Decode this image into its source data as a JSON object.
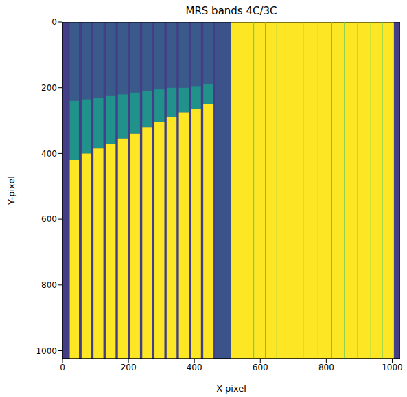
{
  "chart_data": {
    "type": "image",
    "title": "MRS bands 4C/3C",
    "x_label": "X-pixel",
    "y_label": "Y-pixel",
    "xlim": [
      0,
      1024
    ],
    "ylim": [
      0,
      1024
    ],
    "xticks": [
      0,
      200,
      400,
      600,
      800,
      1000
    ],
    "yticks": [
      0,
      200,
      400,
      600,
      800,
      1000
    ],
    "regions": [
      {
        "x": [
          0,
          1024
        ],
        "y": [
          0,
          1024
        ],
        "color": "#433e85"
      },
      {
        "x": [
          462,
          510
        ],
        "y": [
          0,
          1024
        ],
        "color": "#3b528b"
      },
      {
        "x": [
          510,
          1005
        ],
        "y": [
          0,
          1024
        ],
        "color": "#fde725"
      }
    ],
    "colors": [
      "#3b5a8c",
      "#21918c",
      "#fde725"
    ],
    "slices": [
      {
        "x": [
          22,
          50
        ],
        "teal_from": 240,
        "yellow_from": 420
      },
      {
        "x": [
          58,
          87
        ],
        "teal_from": 235,
        "yellow_from": 400
      },
      {
        "x": [
          94,
          124
        ],
        "teal_from": 230,
        "yellow_from": 385
      },
      {
        "x": [
          131,
          161
        ],
        "teal_from": 225,
        "yellow_from": 370
      },
      {
        "x": [
          168,
          198
        ],
        "teal_from": 220,
        "yellow_from": 355
      },
      {
        "x": [
          205,
          235
        ],
        "teal_from": 215,
        "yellow_from": 340
      },
      {
        "x": [
          242,
          272
        ],
        "teal_from": 210,
        "yellow_from": 320
      },
      {
        "x": [
          279,
          309
        ],
        "teal_from": 205,
        "yellow_from": 305
      },
      {
        "x": [
          316,
          346
        ],
        "teal_from": 200,
        "yellow_from": 290
      },
      {
        "x": [
          353,
          383
        ],
        "teal_from": 200,
        "yellow_from": 275
      },
      {
        "x": [
          390,
          420
        ],
        "teal_from": 195,
        "yellow_from": 265
      },
      {
        "x": [
          427,
          458
        ],
        "teal_from": 190,
        "yellow_from": 250
      }
    ],
    "lines": {
      "x": [
        580,
        615,
        650,
        690,
        730,
        775,
        815,
        855,
        895,
        935,
        970
      ],
      "color": "#5ec962"
    }
  }
}
